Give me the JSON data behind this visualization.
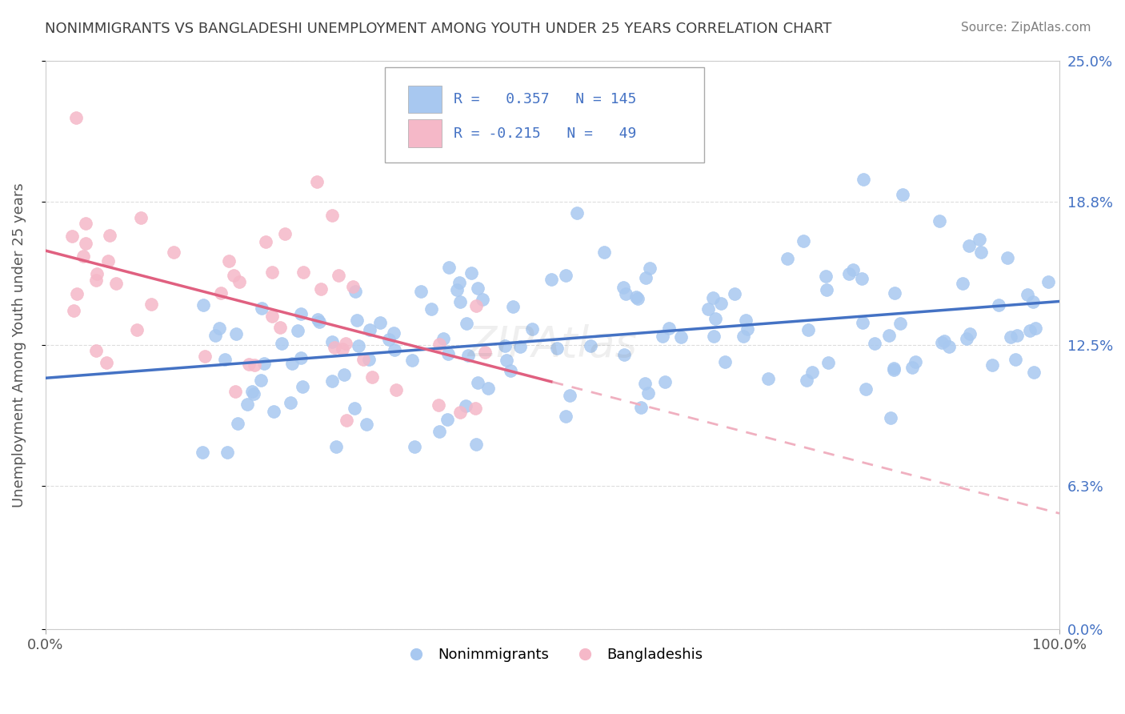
{
  "title": "NONIMMIGRANTS VS BANGLADESHI UNEMPLOYMENT AMONG YOUTH UNDER 25 YEARS CORRELATION CHART",
  "source_text": "Source: ZipAtlas.com",
  "ylabel": "Unemployment Among Youth under 25 years",
  "ytick_labels": [
    "0.0%",
    "6.3%",
    "12.5%",
    "18.8%",
    "25.0%"
  ],
  "ytick_values": [
    0.0,
    6.3,
    12.5,
    18.8,
    25.0
  ],
  "legend_labels": [
    "Nonimmigrants",
    "Bangladeshis"
  ],
  "r_blue": 0.357,
  "n_blue": 145,
  "r_pink": -0.215,
  "n_pink": 49,
  "blue_color": "#a8c8f0",
  "pink_color": "#f5b8c8",
  "blue_line_color": "#4472c4",
  "pink_line_color": "#e06080",
  "pink_dashed_color": "#f0b0c0",
  "text_blue_color": "#4472c4",
  "title_color": "#404040",
  "source_color": "#808080",
  "figsize": [
    14.06,
    8.92
  ],
  "dpi": 100
}
